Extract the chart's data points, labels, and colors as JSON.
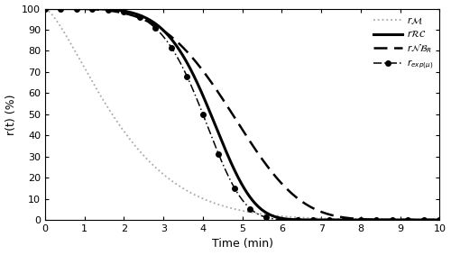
{
  "title": "",
  "xlabel": "Time (min)",
  "ylabel": "r(t) (%)",
  "xlim": [
    0,
    10
  ],
  "ylim": [
    0,
    100
  ],
  "xticks": [
    0,
    1,
    2,
    3,
    4,
    5,
    6,
    7,
    8,
    9,
    10
  ],
  "yticks": [
    0,
    10,
    20,
    30,
    40,
    50,
    60,
    70,
    80,
    90,
    100
  ],
  "legend_labels": [
    "$r\\mathcal{M}$",
    "$r\\mathcal{RC}$",
    "$r\\mathcal{NB}_R$",
    "$r_{exp(\\mu)}$"
  ],
  "background_color": "#ffffff",
  "rM_t50": 1.7,
  "rM_k": 1.4,
  "rRC_t50": 4.2,
  "rRC_k": 5.5,
  "rNB_t50": 4.75,
  "rNB_k": 4.0,
  "rexp_t50": 4.0,
  "rexp_k": 5.5,
  "n_markers": 26,
  "lightgray": "#aaaaaa",
  "black": "#000000"
}
